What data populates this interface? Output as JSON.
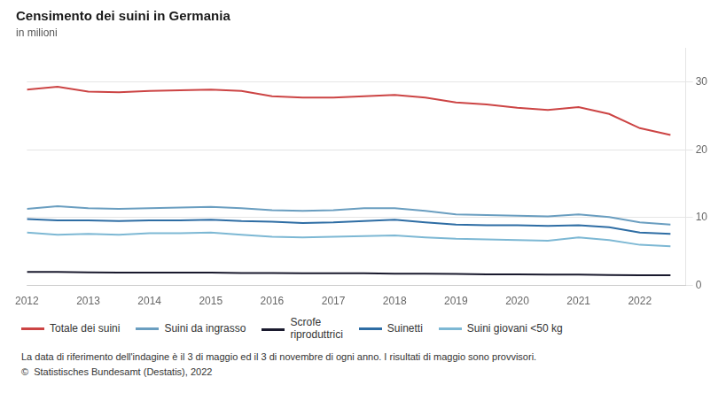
{
  "chart_data": {
    "type": "line",
    "title": "Censimento dei suini in Germania",
    "subtitle": "in milioni",
    "footnote": "La data di riferimento dell'indagine è il 3 di maggio ed il 3 di novembre di ogni anno. I risultati di maggio sono provvisori.",
    "source": "©  Statistisches Bundesamt (Destatis), 2022",
    "x": [
      2012.0,
      2012.5,
      2013.0,
      2013.5,
      2014.0,
      2014.5,
      2015.0,
      2015.5,
      2016.0,
      2016.5,
      2017.0,
      2017.5,
      2018.0,
      2018.5,
      2019.0,
      2019.5,
      2020.0,
      2020.5,
      2021.0,
      2021.5,
      2022.0,
      2022.5
    ],
    "series": [
      {
        "name": "Totale dei suini",
        "color": "#cc4444",
        "values": [
          28.9,
          29.3,
          28.6,
          28.5,
          28.7,
          28.8,
          28.9,
          28.7,
          27.9,
          27.7,
          27.7,
          27.9,
          28.1,
          27.7,
          27.0,
          26.7,
          26.2,
          25.9,
          26.3,
          25.3,
          23.2,
          22.2
        ]
      },
      {
        "name": "Suini da ingrasso",
        "color": "#6a9ec0",
        "values": [
          11.3,
          11.7,
          11.4,
          11.3,
          11.4,
          11.5,
          11.6,
          11.4,
          11.1,
          11.0,
          11.1,
          11.4,
          11.4,
          11.0,
          10.5,
          10.4,
          10.3,
          10.2,
          10.5,
          10.1,
          9.3,
          9.0
        ]
      },
      {
        "name": "Scrofe\nriproduttrici",
        "color": "#1a1a2e",
        "values": [
          2.0,
          2.0,
          1.95,
          1.9,
          1.9,
          1.9,
          1.9,
          1.85,
          1.85,
          1.8,
          1.8,
          1.8,
          1.75,
          1.75,
          1.7,
          1.65,
          1.65,
          1.6,
          1.6,
          1.55,
          1.5,
          1.5
        ]
      },
      {
        "name": "Suinetti",
        "color": "#2e6da4",
        "values": [
          9.8,
          9.6,
          9.6,
          9.5,
          9.6,
          9.6,
          9.7,
          9.5,
          9.4,
          9.2,
          9.3,
          9.5,
          9.7,
          9.3,
          9.0,
          8.9,
          8.9,
          8.8,
          8.9,
          8.6,
          7.8,
          7.6
        ]
      },
      {
        "name": "Suini giovani <50 kg",
        "color": "#7db8d4",
        "values": [
          7.8,
          7.5,
          7.6,
          7.5,
          7.7,
          7.7,
          7.8,
          7.5,
          7.2,
          7.1,
          7.2,
          7.3,
          7.4,
          7.1,
          6.9,
          6.8,
          6.7,
          6.6,
          7.1,
          6.7,
          6.0,
          5.8
        ]
      }
    ],
    "xlim": [
      2012,
      2022.75
    ],
    "xticks": [
      2012,
      2013,
      2014,
      2015,
      2016,
      2017,
      2018,
      2019,
      2020,
      2021,
      2022
    ],
    "ylim": [
      0,
      35
    ],
    "yticks": [
      0,
      10,
      20,
      30
    ],
    "grid": "y",
    "legend": "bottom"
  }
}
